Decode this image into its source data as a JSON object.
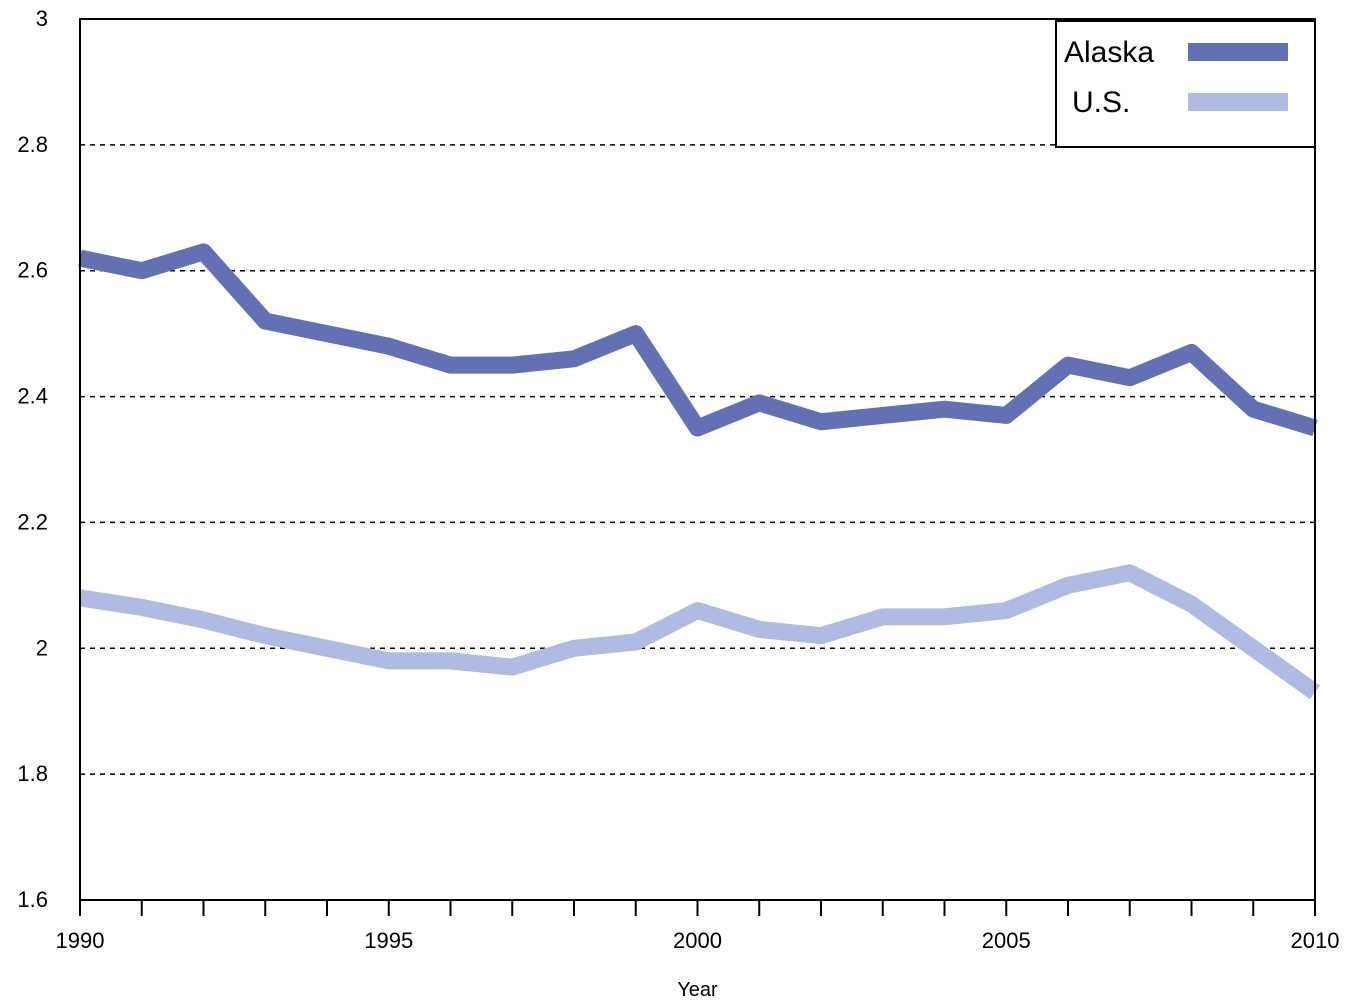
{
  "chart_data": {
    "type": "line",
    "title": "",
    "xlabel": "Year",
    "ylabel": "",
    "xlim": [
      1990,
      2010
    ],
    "ylim": [
      1.6,
      3.0
    ],
    "x": [
      1990,
      1991,
      1992,
      1993,
      1994,
      1995,
      1996,
      1997,
      1998,
      1999,
      2000,
      2001,
      2002,
      2003,
      2004,
      2005,
      2006,
      2007,
      2008,
      2009,
      2010
    ],
    "x_tick_labels": [
      "1990",
      "1995",
      "2000",
      "2005",
      "2010"
    ],
    "y_tick_labels": [
      "1.6",
      "1.8",
      "2",
      "2.2",
      "2.4",
      "2.6",
      "2.8",
      "3"
    ],
    "grid": "horizontal dashed",
    "legend_position": "top-right",
    "series": [
      {
        "name": "Alaska",
        "color": "#6470b4",
        "values": [
          2.62,
          2.6,
          2.63,
          2.52,
          2.5,
          2.48,
          2.45,
          2.45,
          2.46,
          2.5,
          2.35,
          2.39,
          2.36,
          2.37,
          2.38,
          2.37,
          2.45,
          2.43,
          2.47,
          2.38,
          2.35
        ]
      },
      {
        "name": "U.S.",
        "color": "#afbbe3",
        "values": [
          2.08,
          2.065,
          2.045,
          2.02,
          2.0,
          1.98,
          1.98,
          1.97,
          2.0,
          2.01,
          2.06,
          2.03,
          2.02,
          2.05,
          2.05,
          2.06,
          2.1,
          2.12,
          2.07,
          2.0,
          1.93
        ]
      }
    ]
  }
}
